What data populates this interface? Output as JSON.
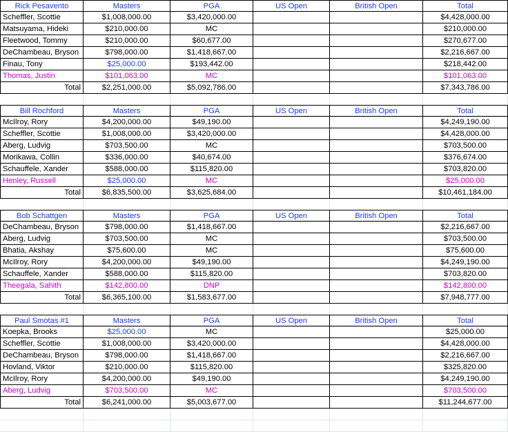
{
  "colors": {
    "header": "#1a3cf0",
    "highlight": "#cc00cc",
    "blue_value": "#1a3cf0"
  },
  "column_headers": [
    "Masters",
    "PGA",
    "US Open",
    "British Open",
    "Total"
  ],
  "total_label": "Total",
  "teams": [
    {
      "owner": "Rick Pesavento",
      "players": [
        {
          "name": "Scheffler, Scottie",
          "masters": "$1,008,000.00",
          "pga": "$3,420,000.00",
          "us_open": "",
          "british_open": "",
          "total": "$4,428,000.00",
          "style": ""
        },
        {
          "name": "Matsuyama, Hideki",
          "masters": "$210,000.00",
          "pga": "MC",
          "us_open": "",
          "british_open": "",
          "total": "$210,000.00",
          "style": ""
        },
        {
          "name": "Fleetwood, Tommy",
          "masters": "$210,000.00",
          "pga": "$60,677.00",
          "us_open": "",
          "british_open": "",
          "total": "$270,677.00",
          "style": ""
        },
        {
          "name": "DeChambeau, Bryson",
          "masters": "$798,000.00",
          "pga": "$1,418,667.00",
          "us_open": "",
          "british_open": "",
          "total": "$2,216,667.00",
          "style": ""
        },
        {
          "name": "Finau, Tony",
          "masters": "$25,000.00",
          "pga": "$193,442.00",
          "us_open": "",
          "british_open": "",
          "total": "$218,442.00",
          "style": "blue-masters"
        },
        {
          "name": "Thomas, Justin",
          "masters": "$101,063.00",
          "pga": "MC",
          "us_open": "",
          "british_open": "",
          "total": "$101,063.00",
          "style": "pink"
        }
      ],
      "totals": {
        "masters": "$2,251,000.00",
        "pga": "$5,092,786.00",
        "us_open": "",
        "british_open": "",
        "total": "$7,343,786.00"
      }
    },
    {
      "owner": "Bill Rochford",
      "players": [
        {
          "name": "McIlroy, Rory",
          "masters": "$4,200,000.00",
          "pga": "$49,190.00",
          "us_open": "",
          "british_open": "",
          "total": "$4,249,190.00",
          "style": ""
        },
        {
          "name": "Scheffler, Scottie",
          "masters": "$1,008,000.00",
          "pga": "$3,420,000.00",
          "us_open": "",
          "british_open": "",
          "total": "$4,428,000.00",
          "style": ""
        },
        {
          "name": "Aberg, Ludvig",
          "masters": "$703,500.00",
          "pga": "MC",
          "us_open": "",
          "british_open": "",
          "total": "$703,500.00",
          "style": ""
        },
        {
          "name": "Morikawa, Collin",
          "masters": "$336,000.00",
          "pga": "$40,674.00",
          "us_open": "",
          "british_open": "",
          "total": "$376,674.00",
          "style": ""
        },
        {
          "name": "Schauffele, Xander",
          "masters": "$588,000.00",
          "pga": "$115,820.00",
          "us_open": "",
          "british_open": "",
          "total": "$703,820.00",
          "style": ""
        },
        {
          "name": "Henley, Russell",
          "masters": "$25,000.00",
          "pga": "MC",
          "us_open": "",
          "british_open": "",
          "total": "$25,000.00",
          "style": "pink-blue-masters"
        }
      ],
      "totals": {
        "masters": "$6,835,500.00",
        "pga": "$3,625,684.00",
        "us_open": "",
        "british_open": "",
        "total": "$10,461,184.00"
      }
    },
    {
      "owner": "Bob Schattgen",
      "players": [
        {
          "name": "DeChambeau, Bryson",
          "masters": "$798,000.00",
          "pga": "$1,418,667.00",
          "us_open": "",
          "british_open": "",
          "total": "$2,216,667.00",
          "style": ""
        },
        {
          "name": "Aberg, Ludvig",
          "masters": "$703,500.00",
          "pga": "MC",
          "us_open": "",
          "british_open": "",
          "total": "$703,500.00",
          "style": ""
        },
        {
          "name": "Bhatia, Akshay",
          "masters": "$75,600.00",
          "pga": "MC",
          "us_open": "",
          "british_open": "",
          "total": "$75,600.00",
          "style": ""
        },
        {
          "name": "McIlroy, Rory",
          "masters": "$4,200,000.00",
          "pga": "$49,190.00",
          "us_open": "",
          "british_open": "",
          "total": "$4,249,190.00",
          "style": ""
        },
        {
          "name": "Schauffele, Xander",
          "masters": "$588,000.00",
          "pga": "$115,820.00",
          "us_open": "",
          "british_open": "",
          "total": "$703,820.00",
          "style": ""
        },
        {
          "name": "Theegala, Sahith",
          "masters": "$142,800.00",
          "pga": "DNP",
          "us_open": "",
          "british_open": "",
          "total": "$142,800.00",
          "style": "pink"
        }
      ],
      "totals": {
        "masters": "$6,365,100.00",
        "pga": "$1,583,677.00",
        "us_open": "",
        "british_open": "",
        "total": "$7,948,777.00"
      }
    },
    {
      "owner": "Paul Smotas #1",
      "players": [
        {
          "name": "Koepka, Brooks",
          "masters": "$25,000.00",
          "pga": "MC",
          "us_open": "",
          "british_open": "",
          "total": "$25,000.00",
          "style": "blue-masters"
        },
        {
          "name": "Scheffler, Scottie",
          "masters": "$1,008,000.00",
          "pga": "$3,420,000.00",
          "us_open": "",
          "british_open": "",
          "total": "$4,428,000.00",
          "style": ""
        },
        {
          "name": "DeChambeau, Bryson",
          "masters": "$798,000.00",
          "pga": "$1,418,667.00",
          "us_open": "",
          "british_open": "",
          "total": "$2,216,667.00",
          "style": ""
        },
        {
          "name": "Hovland, Viktor",
          "masters": "$210,000.00",
          "pga": "$115,820.00",
          "us_open": "",
          "british_open": "",
          "total": "$325,820.00",
          "style": ""
        },
        {
          "name": "McIlroy, Rory",
          "masters": "$4,200,000.00",
          "pga": "$49,190.00",
          "us_open": "",
          "british_open": "",
          "total": "$4,249,190.00",
          "style": ""
        },
        {
          "name": "Aberg, Ludvig",
          "masters": "$703,500.00",
          "pga": "MC",
          "us_open": "",
          "british_open": "",
          "total": "$703,500.00",
          "style": "pink"
        }
      ],
      "totals": {
        "masters": "$6,241,000.00",
        "pga": "$5,003,677.00",
        "us_open": "",
        "british_open": "",
        "total": "$11,244,677.00"
      }
    }
  ]
}
